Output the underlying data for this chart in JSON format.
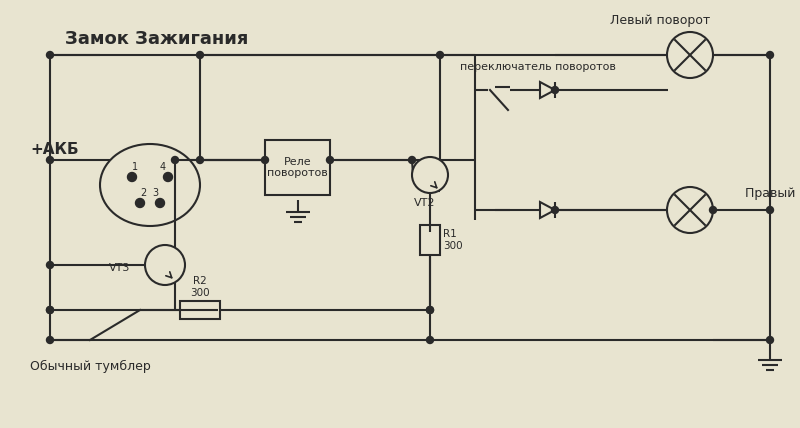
{
  "bg_color": "#e8e4d0",
  "line_color": "#2a2a2a",
  "title": "Замок Зажигания",
  "label_akb": "+АКБ",
  "label_relay": "Реле\nповоротов",
  "label_switch": "переключатель поворотов",
  "label_left": "Левый поворот",
  "label_right": "Правый поворот",
  "label_vt2": "VT2",
  "label_vt3": "VT3",
  "label_r1": "R1\n300",
  "label_r2": "R2\n300",
  "label_tumbler": "Обычный тумблер",
  "figsize": [
    8.0,
    4.28
  ],
  "dpi": 100
}
